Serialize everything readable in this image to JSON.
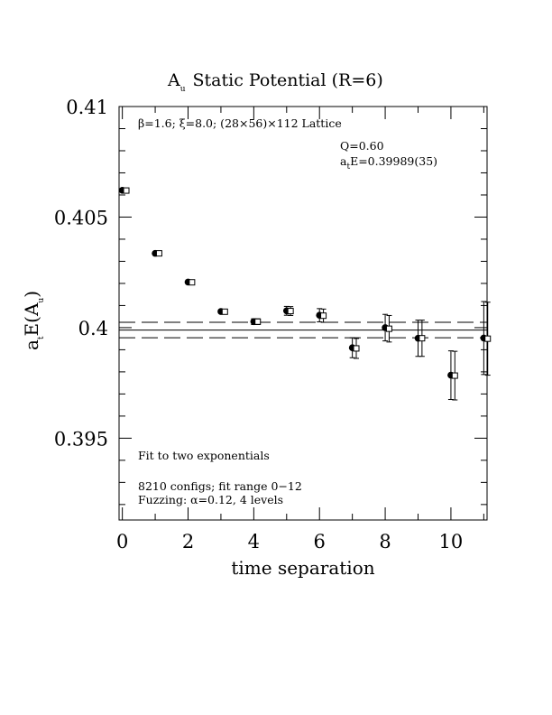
{
  "chart_data": {
    "type": "scatter",
    "title_main": "A",
    "title_sub": "u",
    "title_rest": "Static Potential (R=6)",
    "xlabel": "time separation",
    "ylabel_a": "a",
    "ylabel_sub_t": "t",
    "ylabel_mid": "E(A",
    "ylabel_sub_u": "u",
    "ylabel_end": ")",
    "xlim": [
      -0.1,
      11.1
    ],
    "ylim": [
      0.3913,
      0.41
    ],
    "xticks": [
      0,
      2,
      4,
      6,
      8,
      10
    ],
    "xtick_labels": [
      "0",
      "2",
      "4",
      "6",
      "8",
      "10"
    ],
    "yticks": [
      0.395,
      0.4,
      0.405,
      0.41
    ],
    "ytick_labels": [
      "0.395",
      "0.4",
      "0.405",
      "0.41"
    ],
    "fit_value": 0.39989,
    "fit_error": 0.00035,
    "series": [
      {
        "marker": "filled-circle",
        "x": [
          0,
          1,
          2,
          3,
          4,
          5,
          6,
          7,
          8,
          9,
          10,
          11
        ],
        "y": [
          0.40621,
          0.40336,
          0.40206,
          0.40073,
          0.40027,
          0.40076,
          0.40056,
          0.39909,
          0.4,
          0.39952,
          0.39785,
          0.39953
        ],
        "err": [
          4e-05,
          4e-05,
          5e-05,
          8e-05,
          0.00013,
          0.0002,
          0.0003,
          0.00045,
          0.0006,
          0.00082,
          0.0011,
          0.00165
        ]
      },
      {
        "marker": "open-square",
        "x": [
          0.12,
          1.12,
          2.12,
          3.12,
          4.12,
          5.12,
          6.12,
          7.12,
          8.12,
          9.12,
          10.12,
          11.12
        ],
        "y": [
          0.4062,
          0.40336,
          0.40205,
          0.40072,
          0.40027,
          0.40075,
          0.40054,
          0.39906,
          0.39995,
          0.39952,
          0.39783,
          0.3995
        ],
        "err": [
          4e-05,
          4e-05,
          5e-05,
          8e-05,
          0.00013,
          0.0002,
          0.0003,
          0.00045,
          0.0006,
          0.00082,
          0.0011,
          0.00165
        ]
      }
    ],
    "annotations": {
      "lattice_line": "β=1.6; ξ=8.0; (28×56)×112 Lattice",
      "q_line": "Q=0.60",
      "energy_a": "a",
      "energy_sub": "t",
      "energy_rest": "E=0.39989(35)",
      "fit_method": "Fit to two exponentials",
      "configs_line": "8210 configs; fit range 0−12",
      "fuzzing_line": "Fuzzing: α=0.12, 4 levels"
    }
  }
}
